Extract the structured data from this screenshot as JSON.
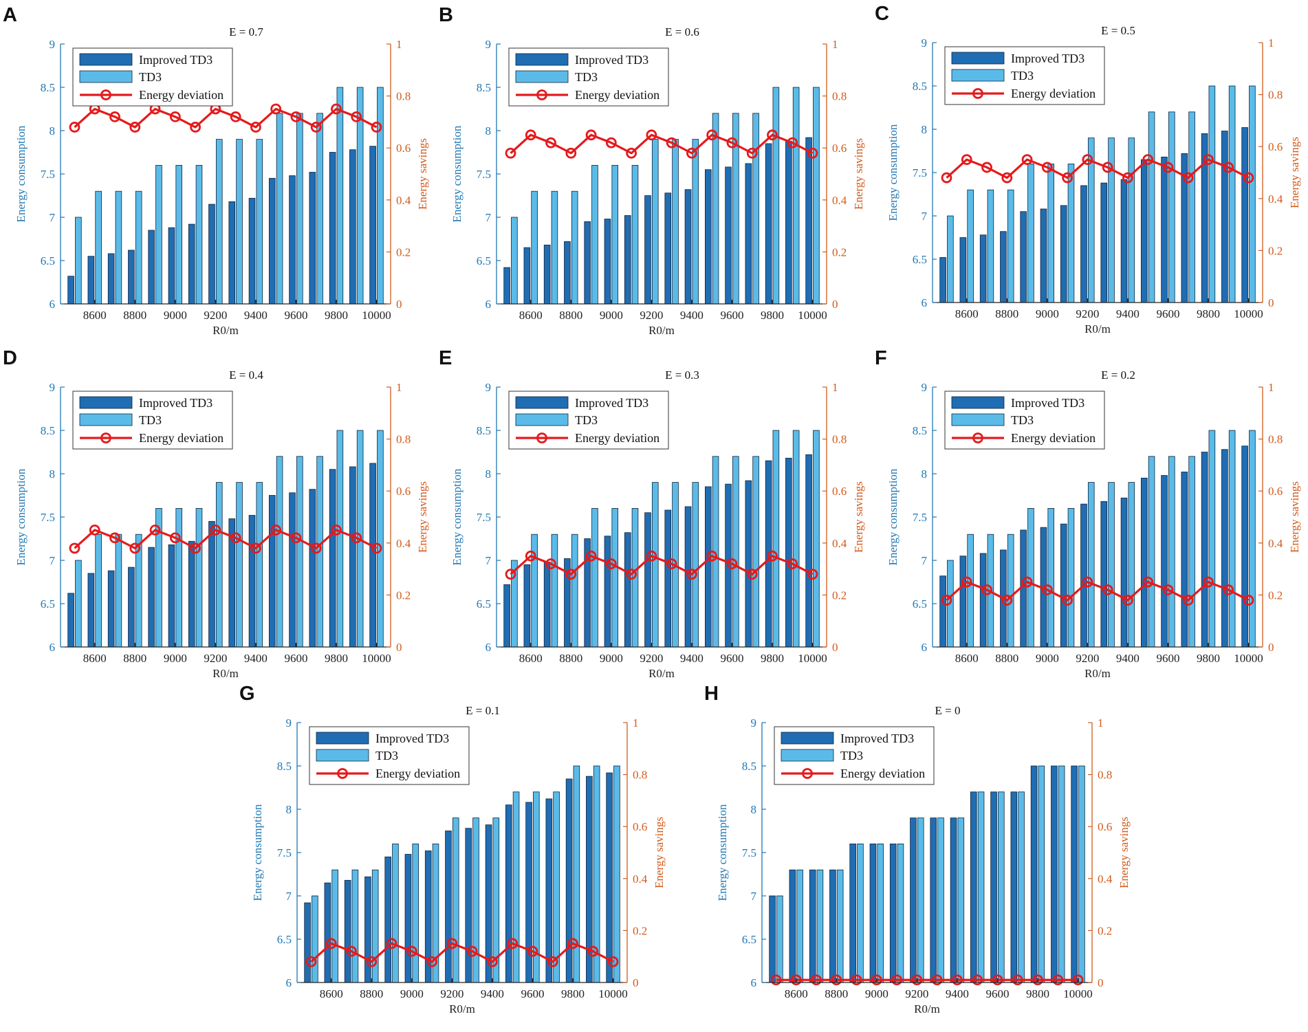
{
  "figure": {
    "colors": {
      "improved_td3": "#1f6db3",
      "td3": "#5bbbe8",
      "energy_deviation": "#e41a1c",
      "left_axis": "#1f77b4",
      "right_axis": "#d25a1a",
      "bar_edge": "#10233a"
    },
    "shared": {
      "xlabel": "R0/m",
      "ylabel_left": "Energy consumption",
      "ylabel_right": "Energy savings",
      "x_tick_labels": [
        "8600",
        "8800",
        "9000",
        "9200",
        "9400",
        "9600",
        "9800",
        "10000"
      ],
      "y_left_ticks": [
        "6",
        "6.5",
        "7",
        "7.5",
        "8",
        "8.5",
        "9"
      ],
      "y_right_ticks": [
        "0",
        "0.2",
        "0.4",
        "0.6",
        "0.8",
        "1"
      ],
      "legend": [
        "Improved TD3",
        "TD3",
        "Energy deviation"
      ]
    }
  },
  "chart_data": [
    {
      "panel": "A",
      "title": "E = 0.7",
      "type": "bar",
      "xlabel": "R0/m",
      "ylabel": "Energy consumption",
      "ylabel_right": "Energy savings",
      "categories": [
        8500,
        8600,
        8700,
        8800,
        8900,
        9000,
        9100,
        9200,
        9300,
        9400,
        9500,
        9600,
        9700,
        9800,
        9900,
        10000
      ],
      "ylim": [
        6,
        9
      ],
      "ylim_right": [
        0,
        1
      ],
      "xlim": [
        8430,
        10070
      ],
      "series": [
        {
          "name": "Improved TD3",
          "axis": "left",
          "type": "bar",
          "values": [
            6.32,
            6.55,
            6.58,
            6.62,
            6.85,
            6.88,
            6.92,
            7.15,
            7.18,
            7.22,
            7.45,
            7.48,
            7.52,
            7.75,
            7.78,
            7.82
          ]
        },
        {
          "name": "TD3",
          "axis": "left",
          "type": "bar",
          "values": [
            7.0,
            7.3,
            7.3,
            7.3,
            7.6,
            7.6,
            7.6,
            7.9,
            7.9,
            7.9,
            8.2,
            8.2,
            8.2,
            8.5,
            8.5,
            8.5
          ]
        },
        {
          "name": "Energy deviation",
          "axis": "right",
          "type": "line",
          "values": [
            0.68,
            0.75,
            0.72,
            0.68,
            0.75,
            0.72,
            0.68,
            0.75,
            0.72,
            0.68,
            0.75,
            0.72,
            0.68,
            0.75,
            0.72,
            0.68
          ]
        }
      ]
    },
    {
      "panel": "B",
      "title": "E = 0.6",
      "type": "bar",
      "xlabel": "R0/m",
      "ylabel": "Energy consumption",
      "ylabel_right": "Energy savings",
      "categories": [
        8500,
        8600,
        8700,
        8800,
        8900,
        9000,
        9100,
        9200,
        9300,
        9400,
        9500,
        9600,
        9700,
        9800,
        9900,
        10000
      ],
      "ylim": [
        6,
        9
      ],
      "ylim_right": [
        0,
        1
      ],
      "xlim": [
        8430,
        10070
      ],
      "series": [
        {
          "name": "Improved TD3",
          "axis": "left",
          "type": "bar",
          "values": [
            6.42,
            6.65,
            6.68,
            6.72,
            6.95,
            6.98,
            7.02,
            7.25,
            7.28,
            7.32,
            7.55,
            7.58,
            7.62,
            7.85,
            7.88,
            7.92
          ]
        },
        {
          "name": "TD3",
          "axis": "left",
          "type": "bar",
          "values": [
            7.0,
            7.3,
            7.3,
            7.3,
            7.6,
            7.6,
            7.6,
            7.9,
            7.9,
            7.9,
            8.2,
            8.2,
            8.2,
            8.5,
            8.5,
            8.5
          ]
        },
        {
          "name": "Energy deviation",
          "axis": "right",
          "type": "line",
          "values": [
            0.58,
            0.65,
            0.62,
            0.58,
            0.65,
            0.62,
            0.58,
            0.65,
            0.62,
            0.58,
            0.65,
            0.62,
            0.58,
            0.65,
            0.62,
            0.58
          ]
        }
      ]
    },
    {
      "panel": "C",
      "title": "E = 0.5",
      "type": "bar",
      "xlabel": "R0/m",
      "ylabel": "Energy consumption",
      "ylabel_right": "Energy savings",
      "categories": [
        8500,
        8600,
        8700,
        8800,
        8900,
        9000,
        9100,
        9200,
        9300,
        9400,
        9500,
        9600,
        9700,
        9800,
        9900,
        10000
      ],
      "ylim": [
        6,
        9
      ],
      "ylim_right": [
        0,
        1
      ],
      "xlim": [
        8430,
        10070
      ],
      "series": [
        {
          "name": "Improved TD3",
          "axis": "left",
          "type": "bar",
          "values": [
            6.52,
            6.75,
            6.78,
            6.82,
            7.05,
            7.08,
            7.12,
            7.35,
            7.38,
            7.42,
            7.65,
            7.68,
            7.72,
            7.95,
            7.98,
            8.02
          ]
        },
        {
          "name": "TD3",
          "axis": "left",
          "type": "bar",
          "values": [
            7.0,
            7.3,
            7.3,
            7.3,
            7.6,
            7.6,
            7.6,
            7.9,
            7.9,
            7.9,
            8.2,
            8.2,
            8.2,
            8.5,
            8.5,
            8.5
          ]
        },
        {
          "name": "Energy deviation",
          "axis": "right",
          "type": "line",
          "values": [
            0.48,
            0.55,
            0.52,
            0.48,
            0.55,
            0.52,
            0.48,
            0.55,
            0.52,
            0.48,
            0.55,
            0.52,
            0.48,
            0.55,
            0.52,
            0.48
          ]
        }
      ]
    },
    {
      "panel": "D",
      "title": "E = 0.4",
      "type": "bar",
      "xlabel": "R0/m",
      "ylabel": "Energy consumption",
      "ylabel_right": "Energy savings",
      "categories": [
        8500,
        8600,
        8700,
        8800,
        8900,
        9000,
        9100,
        9200,
        9300,
        9400,
        9500,
        9600,
        9700,
        9800,
        9900,
        10000
      ],
      "ylim": [
        6,
        9
      ],
      "ylim_right": [
        0,
        1
      ],
      "xlim": [
        8430,
        10070
      ],
      "series": [
        {
          "name": "Improved TD3",
          "axis": "left",
          "type": "bar",
          "values": [
            6.62,
            6.85,
            6.88,
            6.92,
            7.15,
            7.18,
            7.22,
            7.45,
            7.48,
            7.52,
            7.75,
            7.78,
            7.82,
            8.05,
            8.08,
            8.12
          ]
        },
        {
          "name": "TD3",
          "axis": "left",
          "type": "bar",
          "values": [
            7.0,
            7.3,
            7.3,
            7.3,
            7.6,
            7.6,
            7.6,
            7.9,
            7.9,
            7.9,
            8.2,
            8.2,
            8.2,
            8.5,
            8.5,
            8.5
          ]
        },
        {
          "name": "Energy deviation",
          "axis": "right",
          "type": "line",
          "values": [
            0.38,
            0.45,
            0.42,
            0.38,
            0.45,
            0.42,
            0.38,
            0.45,
            0.42,
            0.38,
            0.45,
            0.42,
            0.38,
            0.45,
            0.42,
            0.38
          ]
        }
      ]
    },
    {
      "panel": "E",
      "title": "E = 0.3",
      "type": "bar",
      "xlabel": "R0/m",
      "ylabel": "Energy consumption",
      "ylabel_right": "Energy savings",
      "categories": [
        8500,
        8600,
        8700,
        8800,
        8900,
        9000,
        9100,
        9200,
        9300,
        9400,
        9500,
        9600,
        9700,
        9800,
        9900,
        10000
      ],
      "ylim": [
        6,
        9
      ],
      "ylim_right": [
        0,
        1
      ],
      "xlim": [
        8430,
        10070
      ],
      "series": [
        {
          "name": "Improved TD3",
          "axis": "left",
          "type": "bar",
          "values": [
            6.72,
            6.95,
            6.98,
            7.02,
            7.25,
            7.28,
            7.32,
            7.55,
            7.58,
            7.62,
            7.85,
            7.88,
            7.92,
            8.15,
            8.18,
            8.22
          ]
        },
        {
          "name": "TD3",
          "axis": "left",
          "type": "bar",
          "values": [
            7.0,
            7.3,
            7.3,
            7.3,
            7.6,
            7.6,
            7.6,
            7.9,
            7.9,
            7.9,
            8.2,
            8.2,
            8.2,
            8.5,
            8.5,
            8.5
          ]
        },
        {
          "name": "Energy deviation",
          "axis": "right",
          "type": "line",
          "values": [
            0.28,
            0.35,
            0.32,
            0.28,
            0.35,
            0.32,
            0.28,
            0.35,
            0.32,
            0.28,
            0.35,
            0.32,
            0.28,
            0.35,
            0.32,
            0.28
          ]
        }
      ]
    },
    {
      "panel": "F",
      "title": "E = 0.2",
      "type": "bar",
      "xlabel": "R0/m",
      "ylabel": "Energy consumption",
      "ylabel_right": "Energy savings",
      "categories": [
        8500,
        8600,
        8700,
        8800,
        8900,
        9000,
        9100,
        9200,
        9300,
        9400,
        9500,
        9600,
        9700,
        9800,
        9900,
        10000
      ],
      "ylim": [
        6,
        9
      ],
      "ylim_right": [
        0,
        1
      ],
      "xlim": [
        8430,
        10070
      ],
      "series": [
        {
          "name": "Improved TD3",
          "axis": "left",
          "type": "bar",
          "values": [
            6.82,
            7.05,
            7.08,
            7.12,
            7.35,
            7.38,
            7.42,
            7.65,
            7.68,
            7.72,
            7.95,
            7.98,
            8.02,
            8.25,
            8.28,
            8.32
          ]
        },
        {
          "name": "TD3",
          "axis": "left",
          "type": "bar",
          "values": [
            7.0,
            7.3,
            7.3,
            7.3,
            7.6,
            7.6,
            7.6,
            7.9,
            7.9,
            7.9,
            8.2,
            8.2,
            8.2,
            8.5,
            8.5,
            8.5
          ]
        },
        {
          "name": "Energy deviation",
          "axis": "right",
          "type": "line",
          "values": [
            0.18,
            0.25,
            0.22,
            0.18,
            0.25,
            0.22,
            0.18,
            0.25,
            0.22,
            0.18,
            0.25,
            0.22,
            0.18,
            0.25,
            0.22,
            0.18
          ]
        }
      ]
    },
    {
      "panel": "G",
      "title": "E = 0.1",
      "type": "bar",
      "xlabel": "R0/m",
      "ylabel": "Energy consumption",
      "ylabel_right": "Energy savings",
      "categories": [
        8500,
        8600,
        8700,
        8800,
        8900,
        9000,
        9100,
        9200,
        9300,
        9400,
        9500,
        9600,
        9700,
        9800,
        9900,
        10000
      ],
      "ylim": [
        6,
        9
      ],
      "ylim_right": [
        0,
        1
      ],
      "xlim": [
        8430,
        10070
      ],
      "series": [
        {
          "name": "Improved TD3",
          "axis": "left",
          "type": "bar",
          "values": [
            6.92,
            7.15,
            7.18,
            7.22,
            7.45,
            7.48,
            7.52,
            7.75,
            7.78,
            7.82,
            8.05,
            8.08,
            8.12,
            8.35,
            8.38,
            8.42
          ]
        },
        {
          "name": "TD3",
          "axis": "left",
          "type": "bar",
          "values": [
            7.0,
            7.3,
            7.3,
            7.3,
            7.6,
            7.6,
            7.6,
            7.9,
            7.9,
            7.9,
            8.2,
            8.2,
            8.2,
            8.5,
            8.5,
            8.5
          ]
        },
        {
          "name": "Energy deviation",
          "axis": "right",
          "type": "line",
          "values": [
            0.08,
            0.15,
            0.12,
            0.08,
            0.15,
            0.12,
            0.08,
            0.15,
            0.12,
            0.08,
            0.15,
            0.12,
            0.08,
            0.15,
            0.12,
            0.08
          ]
        }
      ]
    },
    {
      "panel": "H",
      "title": "E = 0",
      "type": "bar",
      "xlabel": "R0/m",
      "ylabel": "Energy consumption",
      "ylabel_right": "Energy savings",
      "categories": [
        8500,
        8600,
        8700,
        8800,
        8900,
        9000,
        9100,
        9200,
        9300,
        9400,
        9500,
        9600,
        9700,
        9800,
        9900,
        10000
      ],
      "ylim": [
        6,
        9
      ],
      "ylim_right": [
        0,
        1
      ],
      "xlim": [
        8430,
        10070
      ],
      "series": [
        {
          "name": "Improved TD3",
          "axis": "left",
          "type": "bar",
          "values": [
            7.0,
            7.3,
            7.3,
            7.3,
            7.6,
            7.6,
            7.6,
            7.9,
            7.9,
            7.9,
            8.2,
            8.2,
            8.2,
            8.5,
            8.5,
            8.5
          ]
        },
        {
          "name": "TD3",
          "axis": "left",
          "type": "bar",
          "values": [
            7.0,
            7.3,
            7.3,
            7.3,
            7.6,
            7.6,
            7.6,
            7.9,
            7.9,
            7.9,
            8.2,
            8.2,
            8.2,
            8.5,
            8.5,
            8.5
          ]
        },
        {
          "name": "Energy deviation",
          "axis": "right",
          "type": "line",
          "values": [
            0.01,
            0.01,
            0.01,
            0.01,
            0.01,
            0.01,
            0.01,
            0.01,
            0.01,
            0.01,
            0.01,
            0.01,
            0.01,
            0.01,
            0.01,
            0.01
          ]
        }
      ]
    }
  ]
}
